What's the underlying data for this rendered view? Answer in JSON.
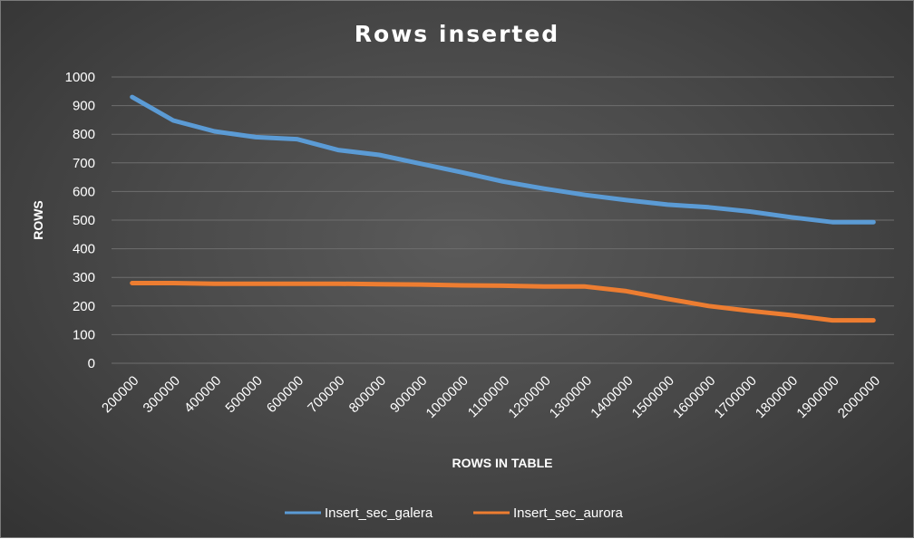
{
  "chart_data": {
    "type": "line",
    "title": "Rows inserted",
    "xlabel": "ROWS IN TABLE",
    "ylabel": "ROWS",
    "ylim": [
      0,
      1000
    ],
    "yticks": [
      0,
      100,
      200,
      300,
      400,
      500,
      600,
      700,
      800,
      900,
      1000
    ],
    "grid": true,
    "legend_position": "bottom",
    "categories": [
      "200000",
      "300000",
      "400000",
      "500000",
      "600000",
      "700000",
      "800000",
      "900000",
      "1000000",
      "1100000",
      "1200000",
      "1300000",
      "1400000",
      "1500000",
      "1600000",
      "1700000",
      "1800000",
      "1900000",
      "2000000"
    ],
    "series": [
      {
        "name": "Insert_sec_galera",
        "color": "#5b9bd5",
        "values": [
          930,
          848,
          810,
          790,
          783,
          745,
          728,
          697,
          667,
          635,
          610,
          588,
          570,
          554,
          545,
          530,
          510,
          493,
          493
        ]
      },
      {
        "name": "Insert_sec_aurora",
        "color": "#ed7d31",
        "values": [
          280,
          280,
          278,
          278,
          278,
          278,
          276,
          275,
          272,
          271,
          268,
          268,
          252,
          225,
          200,
          183,
          168,
          150,
          150
        ]
      }
    ]
  }
}
